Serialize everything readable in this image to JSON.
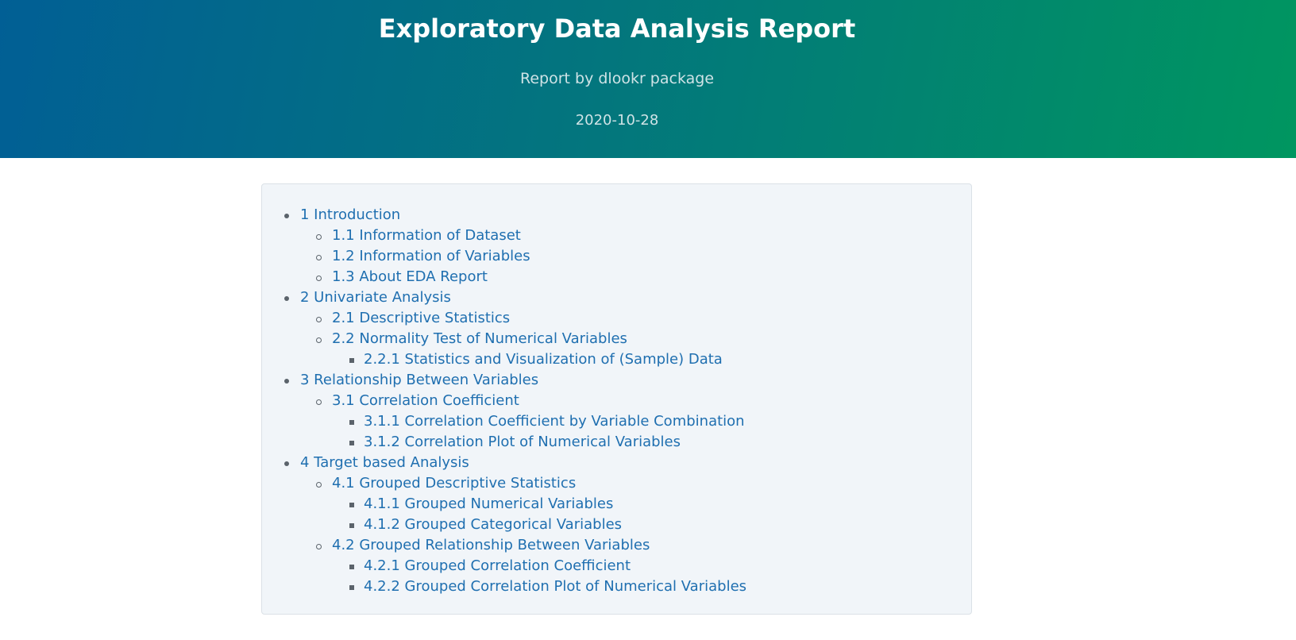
{
  "header": {
    "title": "Exploratory Data Analysis Report",
    "subtitle": "Report by dlookr package",
    "date": "2020-10-28",
    "gradient_colors": [
      "#015f95",
      "#009660"
    ]
  },
  "toc": {
    "items": [
      {
        "level": 1,
        "label": "1 Introduction"
      },
      {
        "level": 2,
        "label": "1.1 Information of Dataset"
      },
      {
        "level": 2,
        "label": "1.2 Information of Variables"
      },
      {
        "level": 2,
        "label": "1.3 About EDA Report"
      },
      {
        "level": 1,
        "label": "2 Univariate Analysis"
      },
      {
        "level": 2,
        "label": "2.1 Descriptive Statistics"
      },
      {
        "level": 2,
        "label": "2.2 Normality Test of Numerical Variables"
      },
      {
        "level": 3,
        "label": "2.2.1 Statistics and Visualization of (Sample) Data"
      },
      {
        "level": 1,
        "label": "3 Relationship Between Variables"
      },
      {
        "level": 2,
        "label": "3.1 Correlation Coefficient"
      },
      {
        "level": 3,
        "label": "3.1.1 Correlation Coefficient by Variable Combination"
      },
      {
        "level": 3,
        "label": "3.1.2 Correlation Plot of Numerical Variables"
      },
      {
        "level": 1,
        "label": "4 Target based Analysis"
      },
      {
        "level": 2,
        "label": "4.1 Grouped Descriptive Statistics"
      },
      {
        "level": 3,
        "label": "4.1.1 Grouped Numerical Variables"
      },
      {
        "level": 3,
        "label": "4.1.2 Grouped Categorical Variables"
      },
      {
        "level": 2,
        "label": "4.2 Grouped Relationship Between Variables"
      },
      {
        "level": 3,
        "label": "4.2.1 Grouped Correlation Coefficient"
      },
      {
        "level": 3,
        "label": "4.2.2 Grouped Correlation Plot of Numerical Variables"
      }
    ]
  }
}
